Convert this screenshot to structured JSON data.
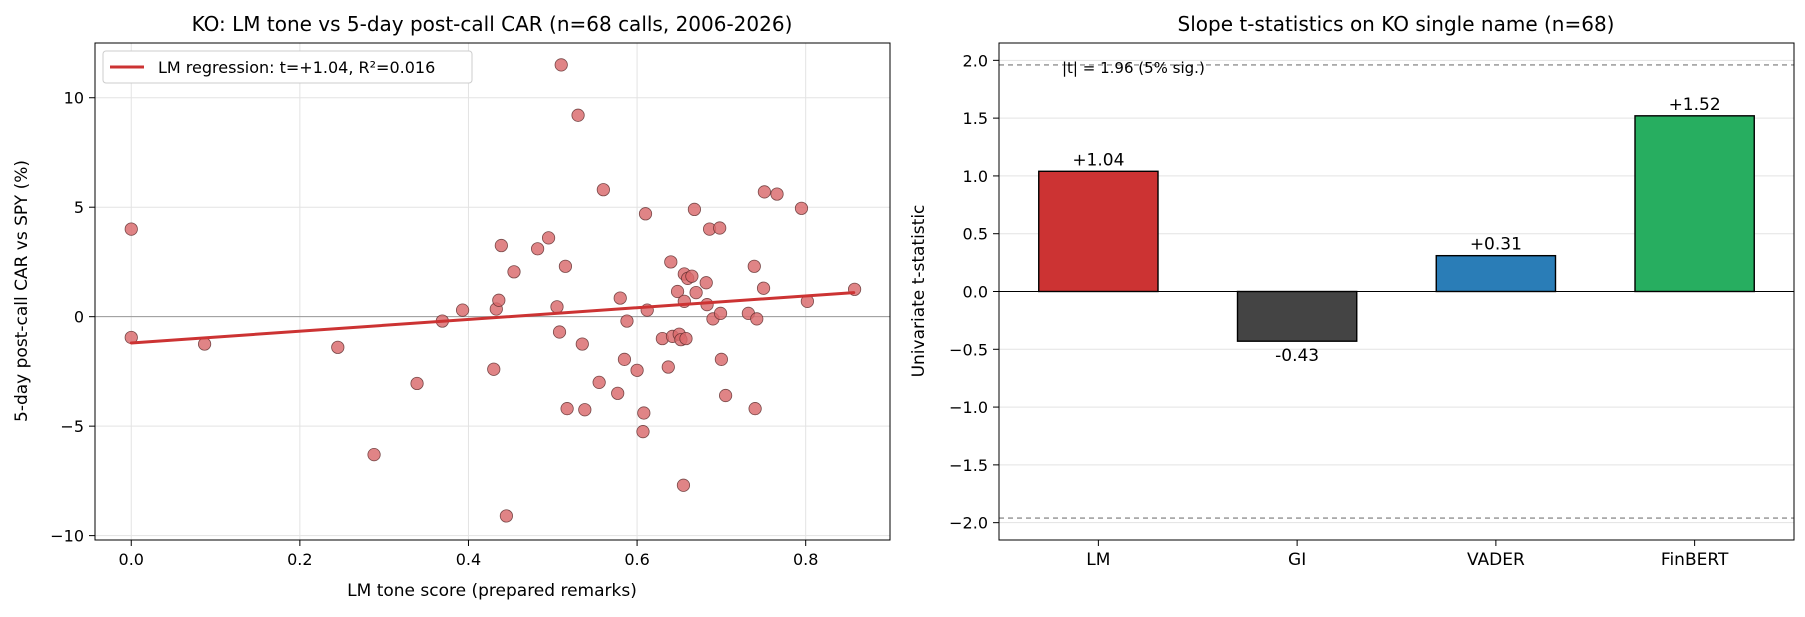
{
  "chart_data": [
    {
      "type": "scatter",
      "title": "KO: LM tone vs 5-day post-call CAR (n=68 calls, 2006-2026)",
      "xlabel": "LM tone score (prepared remarks)",
      "ylabel": "5-day post-call CAR vs SPY (%)",
      "xlim": [
        -0.043,
        0.9
      ],
      "ylim": [
        -10.2,
        12.5
      ],
      "xticks": [
        0.0,
        0.2,
        0.4,
        0.6,
        0.8
      ],
      "xtick_labels": [
        "0.0",
        "0.2",
        "0.4",
        "0.6",
        "0.8"
      ],
      "yticks": [
        -10,
        -5,
        0,
        5,
        10
      ],
      "ytick_labels": [
        "−10",
        "−5",
        "0",
        "5",
        "10"
      ],
      "grid": true,
      "legend": {
        "placement": "top-left",
        "entries": [
          "LM regression: t=+1.04, R²=0.016"
        ]
      },
      "colors": {
        "points": "#d9696b",
        "point_edge": "#5a2a2a",
        "regression": "#cc3333",
        "zero_line": "#999999"
      },
      "regression": {
        "x": [
          0.0,
          0.857
        ],
        "y": [
          -1.2,
          1.1
        ]
      },
      "points": [
        {
          "x": 0.0,
          "y": 4.0
        },
        {
          "x": 0.0,
          "y": -0.95
        },
        {
          "x": 0.087,
          "y": -1.25
        },
        {
          "x": 0.245,
          "y": -1.4
        },
        {
          "x": 0.288,
          "y": -6.3
        },
        {
          "x": 0.339,
          "y": -3.05
        },
        {
          "x": 0.369,
          "y": -0.2
        },
        {
          "x": 0.393,
          "y": 0.3
        },
        {
          "x": 0.43,
          "y": -2.4
        },
        {
          "x": 0.433,
          "y": 0.35
        },
        {
          "x": 0.436,
          "y": 0.75
        },
        {
          "x": 0.439,
          "y": 3.25
        },
        {
          "x": 0.445,
          "y": -9.1
        },
        {
          "x": 0.454,
          "y": 2.05
        },
        {
          "x": 0.482,
          "y": 3.1
        },
        {
          "x": 0.495,
          "y": 3.6
        },
        {
          "x": 0.505,
          "y": 0.45
        },
        {
          "x": 0.508,
          "y": -0.7
        },
        {
          "x": 0.51,
          "y": 11.5
        },
        {
          "x": 0.515,
          "y": 2.3
        },
        {
          "x": 0.517,
          "y": -4.2
        },
        {
          "x": 0.53,
          "y": 9.2
        },
        {
          "x": 0.535,
          "y": -1.25
        },
        {
          "x": 0.538,
          "y": -4.25
        },
        {
          "x": 0.555,
          "y": -3.0
        },
        {
          "x": 0.56,
          "y": 5.8
        },
        {
          "x": 0.577,
          "y": -3.5
        },
        {
          "x": 0.58,
          "y": 0.85
        },
        {
          "x": 0.585,
          "y": -1.95
        },
        {
          "x": 0.588,
          "y": -0.2
        },
        {
          "x": 0.6,
          "y": -2.45
        },
        {
          "x": 0.607,
          "y": -5.25
        },
        {
          "x": 0.608,
          "y": -4.4
        },
        {
          "x": 0.61,
          "y": 4.7
        },
        {
          "x": 0.612,
          "y": 0.3
        },
        {
          "x": 0.63,
          "y": -1.0
        },
        {
          "x": 0.637,
          "y": -2.3
        },
        {
          "x": 0.64,
          "y": 2.5
        },
        {
          "x": 0.642,
          "y": -0.9
        },
        {
          "x": 0.648,
          "y": 1.15
        },
        {
          "x": 0.65,
          "y": -0.8
        },
        {
          "x": 0.652,
          "y": -1.05
        },
        {
          "x": 0.655,
          "y": -7.7
        },
        {
          "x": 0.656,
          "y": 0.7
        },
        {
          "x": 0.656,
          "y": 1.95
        },
        {
          "x": 0.658,
          "y": -1.0
        },
        {
          "x": 0.66,
          "y": 1.75
        },
        {
          "x": 0.665,
          "y": 1.85
        },
        {
          "x": 0.668,
          "y": 4.9
        },
        {
          "x": 0.67,
          "y": 1.1
        },
        {
          "x": 0.682,
          "y": 1.55
        },
        {
          "x": 0.683,
          "y": 0.55
        },
        {
          "x": 0.686,
          "y": 4.0
        },
        {
          "x": 0.69,
          "y": -0.1
        },
        {
          "x": 0.698,
          "y": 4.05
        },
        {
          "x": 0.699,
          "y": 0.15
        },
        {
          "x": 0.7,
          "y": -1.95
        },
        {
          "x": 0.705,
          "y": -3.6
        },
        {
          "x": 0.732,
          "y": 0.15
        },
        {
          "x": 0.739,
          "y": 2.3
        },
        {
          "x": 0.74,
          "y": -4.2
        },
        {
          "x": 0.742,
          "y": -0.1
        },
        {
          "x": 0.75,
          "y": 1.3
        },
        {
          "x": 0.751,
          "y": 5.7
        },
        {
          "x": 0.766,
          "y": 5.6
        },
        {
          "x": 0.795,
          "y": 4.95
        },
        {
          "x": 0.802,
          "y": 0.7
        },
        {
          "x": 0.858,
          "y": 1.25
        }
      ]
    },
    {
      "type": "bar",
      "title": "Slope t-statistics on KO single name (n=68)",
      "xlabel": "",
      "ylabel": "Univariate t-statistic",
      "ylim": [
        -2.15,
        2.15
      ],
      "yticks": [
        -2.0,
        -1.5,
        -1.0,
        -0.5,
        0.0,
        0.5,
        1.0,
        1.5,
        2.0
      ],
      "ytick_labels": [
        "−2.0",
        "−1.5",
        "−1.0",
        "−0.5",
        "0.0",
        "0.5",
        "1.0",
        "1.5",
        "2.0"
      ],
      "grid": true,
      "categories": [
        "LM",
        "GI",
        "VADER",
        "FinBERT"
      ],
      "values": [
        1.04,
        -0.43,
        0.31,
        1.52
      ],
      "value_labels": [
        "+1.04",
        "-0.43",
        "+0.31",
        "+1.52"
      ],
      "bar_colors": [
        "#cc3333",
        "#444444",
        "#2a7db7",
        "#27ae60"
      ],
      "significance": {
        "threshold": 1.96,
        "label": "|t| = 1.96 (5% sig.)"
      }
    }
  ]
}
